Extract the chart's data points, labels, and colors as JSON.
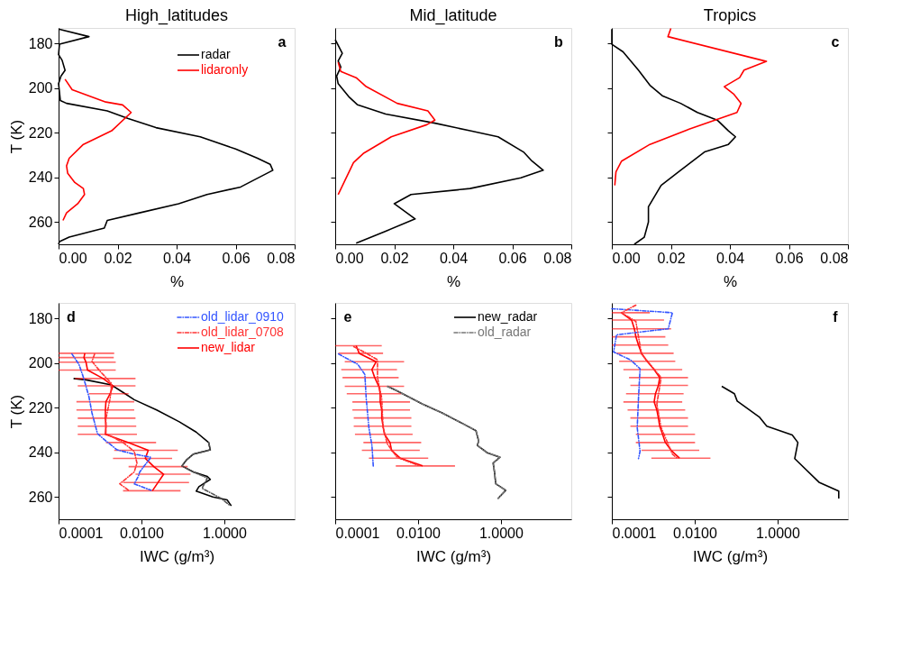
{
  "chart_data": [
    {
      "type": "line",
      "title": "High_latitudes",
      "xlabel": "%",
      "ylabel": "T (K)",
      "xlim": [
        0,
        0.08
      ],
      "ylim": [
        270,
        173
      ],
      "xticks": [
        {
          "value": 0,
          "label": "0.00"
        },
        {
          "value": 0.02,
          "label": "0.02"
        },
        {
          "value": 0.04,
          "label": "0.04"
        },
        {
          "value": 0.06,
          "label": "0.06"
        },
        {
          "value": 0.08,
          "label": "0.08"
        }
      ],
      "yticks": [
        180,
        200,
        220,
        240,
        260
      ],
      "legend": "top right",
      "annotations": [
        "a"
      ],
      "series": [
        {
          "name": "radar",
          "color": "#000000",
          "line_style": "solid",
          "x": [
            0,
            0.0103,
            0.0003,
            0,
            0.0012,
            0.0022,
            0.0008,
            0,
            0.0006,
            0.0027,
            0.0165,
            0.0236,
            0.033,
            0.048,
            0.06,
            0.0674,
            0.0717,
            0.0726,
            0.0617,
            0.0503,
            0.0407,
            0.0274,
            0.0165,
            0.0155,
            0.0036,
            0.0003,
            0
          ],
          "values": [
            173.5,
            176.9,
            180.3,
            185,
            187.5,
            192,
            194.6,
            198,
            205.5,
            206.8,
            210.2,
            213.6,
            217.7,
            221.8,
            227.3,
            231.4,
            234.1,
            236.8,
            244.3,
            247.7,
            251.8,
            255.9,
            259.3,
            262.7,
            266.8,
            268.8,
            270
          ]
        },
        {
          "name": "lidaronly",
          "color": "#ff0000",
          "line_style": "solid",
          "x": [
            0.0022,
            0.0046,
            0.016,
            0.0217,
            0.0246,
            0.018,
            0.0084,
            0.0036,
            0.0027,
            0.0031,
            0.0055,
            0.0084,
            0.0088,
            0.0065,
            0.0027,
            0.0015
          ],
          "values": [
            196,
            200.7,
            206.2,
            207.5,
            210.9,
            219.1,
            225.2,
            231.4,
            234.8,
            238.2,
            242.3,
            245,
            247.7,
            251.8,
            255.9,
            259.3
          ]
        }
      ]
    },
    {
      "type": "line",
      "title": "Mid_latitude",
      "xlabel": "%",
      "xlim": [
        0,
        0.08
      ],
      "ylim": [
        270,
        173
      ],
      "xticks": [
        {
          "value": 0,
          "label": "0.00"
        },
        {
          "value": 0.02,
          "label": "0.02"
        },
        {
          "value": 0.04,
          "label": "0.04"
        },
        {
          "value": 0.06,
          "label": "0.06"
        },
        {
          "value": 0.08,
          "label": "0.08"
        }
      ],
      "yticks": [
        180,
        200,
        220,
        240,
        260
      ],
      "tick_labels": "x",
      "annotations": [
        "b"
      ],
      "series": [
        {
          "color": "#000000",
          "line_style": "solid",
          "x": [
            0,
            0.0024,
            0.001,
            0.0019,
            0.0005,
            0.001,
            0.0048,
            0.0076,
            0.0171,
            0.0338,
            0.0457,
            0.0552,
            0.0638,
            0.0667,
            0.0705,
            0.0629,
            0.0457,
            0.0257,
            0.02,
            0.0271,
            0.0171,
            0.0071
          ],
          "values": [
            178.2,
            184.4,
            187.8,
            190.5,
            194.6,
            198,
            204.1,
            207.5,
            211.6,
            215.7,
            219.1,
            221.8,
            228.6,
            232.7,
            236.8,
            240.2,
            245,
            247.7,
            251.8,
            258.6,
            264.1,
            269.5
          ]
        },
        {
          "color": "#ff0000",
          "line_style": "solid",
          "x": [
            0.001,
            0.0019,
            0.0071,
            0.0105,
            0.021,
            0.0314,
            0.0338,
            0.031,
            0.019,
            0.0095,
            0.0062,
            0.001
          ],
          "values": [
            188.4,
            192.5,
            195.3,
            199.3,
            206.8,
            210.2,
            214.3,
            216.4,
            221.8,
            229.3,
            233.4,
            247.7
          ]
        }
      ]
    },
    {
      "type": "line",
      "title": "Tropics",
      "xlabel": "%",
      "xlim": [
        0,
        0.08
      ],
      "ylim": [
        270,
        173
      ],
      "xticks": [
        {
          "value": 0,
          "label": "0.00"
        },
        {
          "value": 0.02,
          "label": "0.02"
        },
        {
          "value": 0.04,
          "label": "0.04"
        },
        {
          "value": 0.06,
          "label": "0.06"
        },
        {
          "value": 0.08,
          "label": "0.08"
        }
      ],
      "yticks": [
        180,
        200,
        220,
        240,
        260
      ],
      "tick_labels": "x",
      "annotations": [
        "c"
      ],
      "series": [
        {
          "color": "#000000",
          "line_style": "solid",
          "x": [
            0,
            0,
            0.0038,
            0.009,
            0.0129,
            0.0171,
            0.0233,
            0.029,
            0.0357,
            0.0395,
            0.0419,
            0.0395,
            0.0314,
            0.0233,
            0.0167,
            0.0124,
            0.0124,
            0.011,
            0.0076
          ],
          "values": [
            173.5,
            180.3,
            183.7,
            191.9,
            198.7,
            203.4,
            206.8,
            210.9,
            214.3,
            219.1,
            221.8,
            225.2,
            228.6,
            236.8,
            243.6,
            253.2,
            260,
            266.8,
            270
          ]
        },
        {
          "color": "#ff0000",
          "line_style": "solid",
          "x": [
            0.02,
            0.019,
            0.0524,
            0.0448,
            0.0433,
            0.0381,
            0.0414,
            0.0438,
            0.0424,
            0.0262,
            0.0129,
            0.0033,
            0.0014,
            0.001
          ],
          "values": [
            173.2,
            176.9,
            188,
            191.9,
            195.3,
            199.3,
            202.8,
            206.8,
            210.9,
            218.4,
            225.2,
            232.7,
            237.5,
            243.6
          ]
        }
      ]
    },
    {
      "type": "line",
      "xlabel": "IWC (g/m³)",
      "ylabel": "T (K)",
      "log": "x",
      "xlim": [
        0.0001,
        50
      ],
      "ylim": [
        270,
        173
      ],
      "xticks": [
        {
          "value": 0.0001,
          "label": "0.0001"
        },
        {
          "value": 0.01,
          "label": "0.0100"
        },
        {
          "value": 1,
          "label": "1.0000"
        }
      ],
      "yticks": [
        180,
        200,
        220,
        240,
        260
      ],
      "legend": "top right",
      "annotations": [
        "d"
      ],
      "series": [
        {
          "color": "#000000",
          "line_style": "solid",
          "x": [
            0.00023,
            0.00046,
            0.0019,
            0.0036,
            0.0067,
            0.0233,
            0.082,
            0.209,
            0.42,
            0.46,
            0.179,
            0.121,
            0.095,
            0.179,
            0.39,
            0.46,
            0.244,
            0.21,
            0.53,
            1.17,
            1.48
          ],
          "values": [
            206.9,
            207.5,
            209.8,
            213.1,
            216.4,
            221,
            226.3,
            230.9,
            235.6,
            238.9,
            240.8,
            243.5,
            246.1,
            248.8,
            250.8,
            252.1,
            255.4,
            257.4,
            260,
            261.3,
            264
          ]
        },
        {
          "color": "#555555",
          "line_style": "dashed",
          "x": [
            0.42,
            0.46,
            0.179,
            0.121,
            0.095,
            0.179,
            0.39,
            0.29,
            0.85,
            1.4
          ],
          "values": [
            235.6,
            238.9,
            240.8,
            243.5,
            246.1,
            248.8,
            251.5,
            256.1,
            260.7,
            264
          ]
        },
        {
          "name": "old_lidar_0910",
          "color": "#3355ff",
          "line_style": "dashed",
          "x": [
            0.00021,
            0.00031,
            0.0004,
            0.00054,
            0.00064,
            0.00087,
            0.00139,
            0.0026,
            0.0067,
            0.017,
            0.0124,
            0.0091,
            0.0084,
            0.0067,
            0.017
          ],
          "values": [
            195.9,
            200.5,
            206.5,
            215,
            222.3,
            231.6,
            234.9,
            238.9,
            240.8,
            242.2,
            245.5,
            248.8,
            250.8,
            254.1,
            257
          ]
        },
        {
          "name": "old_lidar_0708",
          "color": "#ff3333",
          "line_style": "dashed",
          "x": [
            0.00074,
            0.00064,
            0.00102,
            0.0019,
            0.00176,
            0.00139,
            0.00139,
            0.0036,
            0.0067,
            0.0078,
            0.0067,
            0.003,
            0.0049
          ],
          "values": [
            195.9,
            199.2,
            203.8,
            209.1,
            215.7,
            225,
            231.6,
            235.6,
            239.5,
            244.8,
            248.8,
            254.1,
            257
          ]
        },
        {
          "name": "new_lidar",
          "color": "#ff0000",
          "line_style": "solid",
          "x": [
            0.00043,
            0.00041,
            0.00046,
            0.0005,
            0.00119,
            0.00206,
            0.00176,
            0.00139,
            0.00135,
            0.00135,
            0.00139,
            0.00135,
            0.0049,
            0.0146,
            0.0124,
            0.0199,
            0.0344,
            0.0252,
            0.0184
          ],
          "values": [
            195.6,
            197.5,
            199.6,
            203.1,
            206.9,
            210.2,
            213.7,
            217.3,
            221,
            224.7,
            228.3,
            231.9,
            235.6,
            239.1,
            242.7,
            246.4,
            249.8,
            253.5,
            257.2
          ],
          "xerrors": [
            [
              0.0001,
              0.0022
            ],
            [
              0.0001,
              0.00215
            ],
            [
              0.0001,
              0.0024
            ],
            [
              0.0001,
              0.0024
            ],
            [
              0.00025,
              0.0072
            ],
            [
              0.00029,
              0.0072
            ],
            [
              0.00054,
              0.0049
            ],
            [
              0.00027,
              0.0067
            ],
            [
              0.00027,
              0.0067
            ],
            [
              0.00029,
              0.0072
            ],
            [
              0.00029,
              0.0075
            ],
            [
              0.00029,
              0.0078
            ],
            [
              0.00139,
              0.0226
            ],
            [
              0.0022,
              0.0755
            ],
            [
              0.00206,
              0.0551
            ],
            [
              0.0049,
              0.131
            ],
            [
              0.0072,
              0.153
            ],
            [
              0.0036,
              0.141
            ],
            [
              0.0036,
              0.088
            ]
          ]
        }
      ]
    },
    {
      "type": "line",
      "xlabel": "IWC (g/m³)",
      "log": "x",
      "xlim": [
        0.0001,
        50
      ],
      "ylim": [
        270,
        173
      ],
      "xticks": [
        {
          "value": 0.0001,
          "label": "0.0001"
        },
        {
          "value": 0.01,
          "label": "0.0100"
        },
        {
          "value": 1,
          "label": "1.0000"
        }
      ],
      "yticks": [
        180,
        200,
        220,
        240,
        260
      ],
      "tick_labels": "x",
      "legend": "top right",
      "annotations": [
        "e"
      ],
      "series": [
        {
          "name": "new_radar",
          "color": "#000000",
          "line_style": "solid",
          "x": [
            0.00182,
            0.0031,
            0.0129,
            0.038,
            0.135,
            0.25,
            0.29,
            0.27,
            0.47,
            0.95,
            0.65,
            0.7,
            0.75,
            1.31,
            0.85
          ],
          "values": [
            210.4,
            212.4,
            218.4,
            222.3,
            227.6,
            230.3,
            234.9,
            236.9,
            240.2,
            242.2,
            244.8,
            248.8,
            254.1,
            257,
            260.7
          ]
        },
        {
          "name": "old_radar",
          "color": "#777777",
          "line_style": "dashed",
          "x": [
            0.00182,
            0.0031,
            0.0129,
            0.038,
            0.135,
            0.25,
            0.29,
            0.27,
            0.47,
            0.95,
            0.65,
            0.7,
            0.75,
            1.31,
            0.85
          ],
          "values": [
            210.4,
            212.4,
            218.4,
            222.3,
            227.6,
            230.3,
            234.9,
            236.9,
            240.2,
            242.2,
            244.8,
            248.8,
            254.1,
            257,
            260.7
          ]
        },
        {
          "color": "#3355ff",
          "line_style": "dashed",
          "x": [
            0.00012,
            0.00019,
            0.00035,
            0.00052,
            0.00056,
            0.00065,
            0.00077,
            0.00083
          ],
          "values": [
            195.9,
            197.9,
            200.5,
            205.1,
            215.7,
            228.9,
            236.9,
            246.1
          ]
        },
        {
          "color": "#ff3333",
          "line_style": "dashed",
          "x": [
            0.00028,
            0.00052,
            0.00105,
            0.00105,
            0.00133,
            0.00143,
            0.00181,
            0.0031,
            0.011
          ],
          "values": [
            192.6,
            195.2,
            198.5,
            206.5,
            215.7,
            228.9,
            236.2,
            242.2,
            246.1
          ]
        },
        {
          "color": "#ff0000",
          "line_style": "solid",
          "x": [
            0.00032,
            0.00038,
            0.00097,
            0.00077,
            0.0009,
            0.00113,
            0.00122,
            0.00122,
            0.00133,
            0.00133,
            0.00143,
            0.00155,
            0.0021,
            0.0023,
            0.0037,
            0.0129
          ],
          "values": [
            192.2,
            195.6,
            199.4,
            202.9,
            206.5,
            210.4,
            213.7,
            217.4,
            221,
            224.6,
            228.3,
            231.9,
            235.6,
            239.1,
            242.6,
            246.1
          ],
          "xerrors": [
            [
              0.0001,
              0.00133
            ],
            [
              0.00012,
              0.00143
            ],
            [
              0.00017,
              0.0046
            ],
            [
              0.00014,
              0.0031
            ],
            [
              0.00015,
              0.0034
            ],
            [
              0.00017,
              0.0046
            ],
            [
              0.00019,
              0.004
            ],
            [
              0.00026,
              0.0064
            ],
            [
              0.00026,
              0.0064
            ],
            [
              0.00028,
              0.0069
            ],
            [
              0.00028,
              0.0069
            ],
            [
              0.0003,
              0.0074
            ],
            [
              0.00048,
              0.0119
            ],
            [
              0.00044,
              0.011
            ],
            [
              0.00065,
              0.0176
            ],
            [
              0.0029,
              0.078
            ]
          ]
        }
      ]
    },
    {
      "type": "line",
      "xlabel": "IWC  (g/m³)",
      "log": "x",
      "xlim": [
        0.0001,
        50
      ],
      "ylim": [
        270,
        173
      ],
      "xticks": [
        {
          "value": 0.0001,
          "label": "0.0001"
        },
        {
          "value": 0.01,
          "label": "0.0100"
        },
        {
          "value": 1,
          "label": "1.0000"
        }
      ],
      "yticks": [
        180,
        200,
        220,
        240,
        260
      ],
      "tick_labels": "x",
      "annotations": [
        "f"
      ],
      "series": [
        {
          "color": "#000000",
          "line_style": "solid",
          "x": [
            0.045,
            0.091,
            0.106,
            0.37,
            0.55,
            2.26,
            3.1,
            2.6,
            10,
            30,
            30
          ],
          "values": [
            210.4,
            213.7,
            217,
            224.3,
            228.3,
            232.2,
            235.6,
            242.8,
            253.4,
            257.4,
            260.7
          ]
        },
        {
          "color": "#3355ff",
          "line_style": "dashed",
          "x": [
            0.0001,
            0.0029,
            0.0023,
            0.00013,
            0.00011,
            0.00028,
            0.00048,
            0.00044,
            0.00041,
            0.00048,
            0.00044
          ],
          "values": [
            175.6,
            177.4,
            184.6,
            187.3,
            195,
            198.5,
            202.5,
            215.7,
            228.9,
            239.5,
            242.8
          ]
        },
        {
          "color": "#ff3333",
          "line_style": "dashed",
          "x": [
            0.00038,
            0.00017,
            0.00038,
            0.00052,
            0.00155,
            0.00122,
            0.00155,
            0.0029,
            0.0039
          ],
          "values": [
            174,
            177.4,
            181.3,
            195.9,
            206.5,
            218.4,
            228.9,
            240.8,
            242.8
          ]
        },
        {
          "color": "#ff0000",
          "line_style": "solid",
          "x": [
            0.00017,
            0.0003,
            0.00035,
            0.00038,
            0.00044,
            0.00052,
            0.00071,
            0.00105,
            0.00143,
            0.00133,
            0.00113,
            0.00105,
            0.00122,
            0.00133,
            0.00143,
            0.00168,
            0.00196,
            0.0027,
            0.0043
          ],
          "values": [
            177.4,
            180.7,
            184.6,
            188.2,
            191.9,
            195.6,
            199.2,
            202.9,
            206.5,
            210,
            213.7,
            217.4,
            221,
            224.6,
            228.3,
            231.9,
            235.6,
            239.1,
            242.6
          ],
          "xerrors": [
            [
              0.0001,
              0.00083
            ],
            [
              0.0001,
              0.00182
            ],
            [
              0.0001,
              0.0027
            ],
            [
              0.0001,
              0.00196
            ],
            [
              0.0001,
              0.0023
            ],
            [
              0.00013,
              0.0031
            ],
            [
              0.00015,
              0.0034
            ],
            [
              0.00019,
              0.005
            ],
            [
              0.00026,
              0.0069
            ],
            [
              0.00028,
              0.0069
            ],
            [
              0.00022,
              0.0054
            ],
            [
              0.00019,
              0.005
            ],
            [
              0.00024,
              0.0059
            ],
            [
              0.00028,
              0.0069
            ],
            [
              0.00028,
              0.0069
            ],
            [
              0.00038,
              0.0102
            ],
            [
              0.00038,
              0.0102
            ],
            [
              0.00052,
              0.0129
            ],
            [
              0.0009,
              0.024
            ]
          ]
        }
      ]
    }
  ]
}
